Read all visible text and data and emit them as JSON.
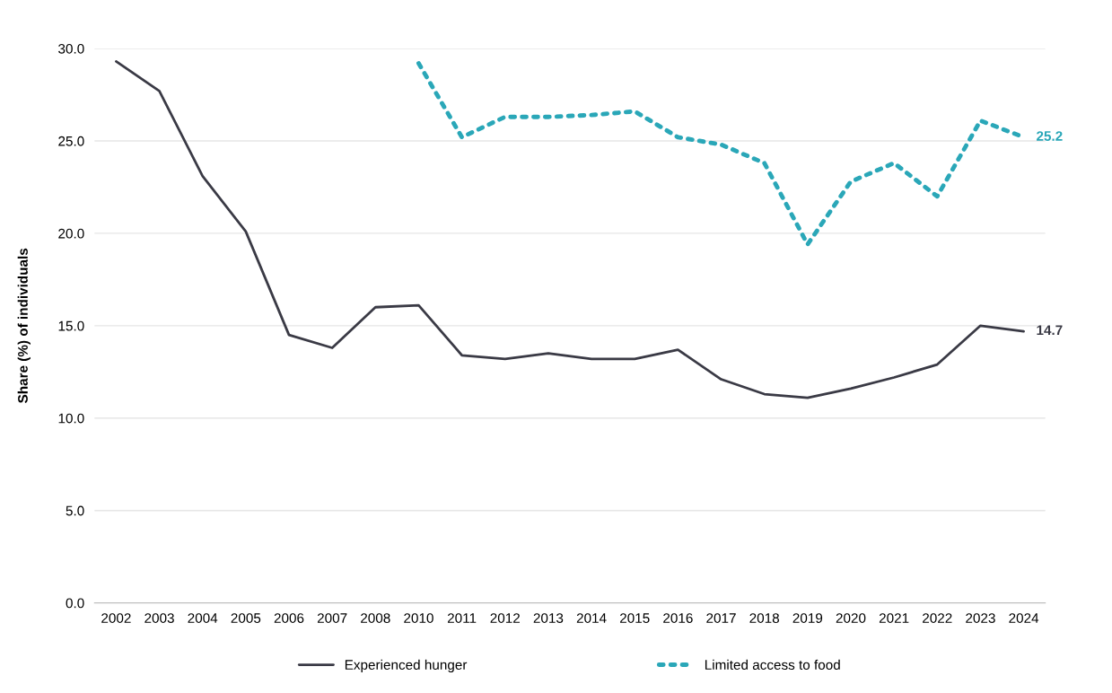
{
  "chart_data": {
    "type": "line",
    "ylabel": "Share (%) of individuals",
    "categories": [
      "2002",
      "2003",
      "2004",
      "2005",
      "2006",
      "2007",
      "2008",
      "2010",
      "2011",
      "2012",
      "2013",
      "2014",
      "2015",
      "2016",
      "2017",
      "2018",
      "2019",
      "2020",
      "2021",
      "2022",
      "2023",
      "2024"
    ],
    "series": [
      {
        "name": "Experienced hunger",
        "color": "#3a3a45",
        "line_style": "solid",
        "values": [
          29.3,
          27.7,
          23.1,
          20.1,
          14.5,
          13.8,
          16.0,
          16.1,
          13.4,
          13.2,
          13.5,
          13.2,
          13.2,
          13.7,
          12.1,
          11.3,
          11.1,
          11.6,
          12.2,
          12.9,
          15.0,
          14.7
        ],
        "value_labels": [
          null,
          null,
          null,
          null,
          null,
          null,
          null,
          null,
          null,
          null,
          null,
          null,
          null,
          null,
          null,
          null,
          null,
          null,
          null,
          null,
          null,
          "14.7"
        ]
      },
      {
        "name": "Limited access to food",
        "color": "#2aa7b8",
        "line_style": "dotted",
        "values": [
          null,
          null,
          null,
          null,
          null,
          null,
          null,
          29.2,
          25.2,
          26.3,
          26.3,
          26.4,
          26.6,
          25.2,
          24.8,
          23.8,
          19.4,
          22.8,
          23.8,
          22.0,
          26.1,
          25.2
        ],
        "value_labels": [
          null,
          null,
          null,
          null,
          null,
          null,
          null,
          null,
          null,
          null,
          null,
          null,
          null,
          null,
          null,
          null,
          null,
          null,
          null,
          null,
          null,
          "25.2"
        ]
      }
    ],
    "ylim": [
      0,
      30
    ],
    "yticks": [
      {
        "value": 0,
        "label": "0.0"
      },
      {
        "value": 5,
        "label": "5.0"
      },
      {
        "value": 10,
        "label": "10.0"
      },
      {
        "value": 15,
        "label": "15.0"
      },
      {
        "value": 20,
        "label": "20.0"
      },
      {
        "value": 25,
        "label": "25.0"
      },
      {
        "value": 30,
        "label": "30.0"
      }
    ],
    "grid": "y",
    "legend": "bottom",
    "marker": "none"
  }
}
